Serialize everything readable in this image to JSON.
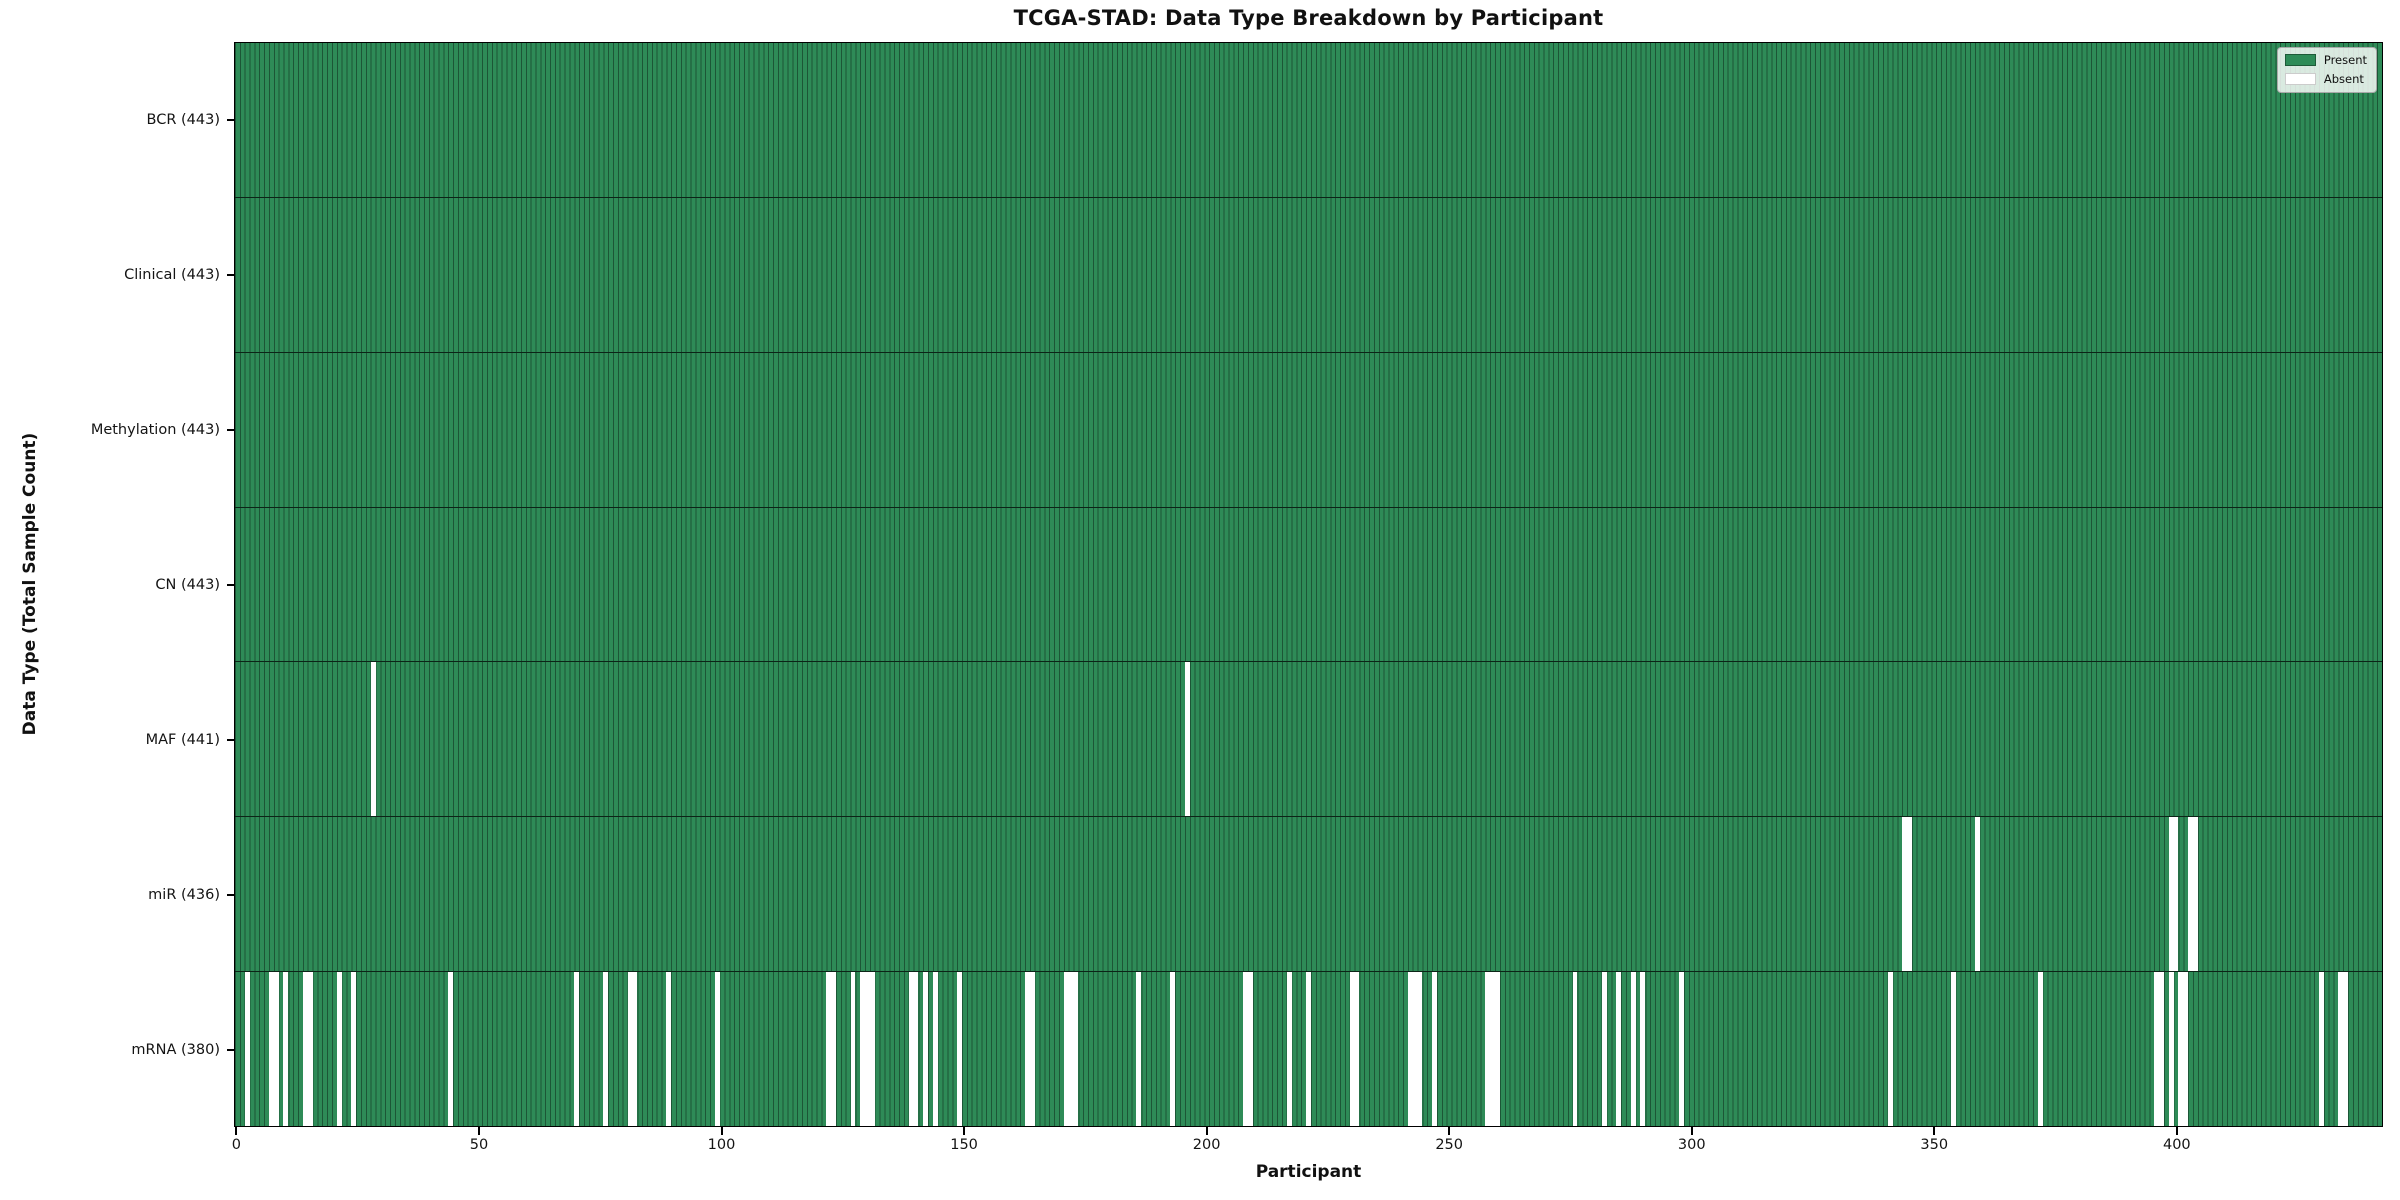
{
  "chart_data": {
    "type": "heatmap",
    "title": "TCGA-STAD: Data Type Breakdown by Participant",
    "xlabel": "Participant",
    "ylabel": "Data Type (Total Sample Count)",
    "n_participants": 443,
    "x_ticks": [
      0,
      50,
      100,
      150,
      200,
      250,
      300,
      350,
      400
    ],
    "xlim": [
      -0.5,
      442.5
    ],
    "grid": false,
    "legend_position": "upper right",
    "legend": {
      "present_label": "Present",
      "absent_label": "Absent"
    },
    "colors": {
      "present": "#2e8b57",
      "absent": "#ffffff"
    },
    "cell_semantics": "green cell = data type present for participant, white cell = absent",
    "rows": [
      {
        "name": "BCR",
        "label": "BCR (443)",
        "present_count": 443,
        "absent_participants": []
      },
      {
        "name": "Clinical",
        "label": "Clinical (443)",
        "present_count": 443,
        "absent_participants": []
      },
      {
        "name": "Methylation",
        "label": "Methylation (443)",
        "present_count": 443,
        "absent_participants": []
      },
      {
        "name": "CN",
        "label": "CN (443)",
        "present_count": 443,
        "absent_participants": []
      },
      {
        "name": "MAF",
        "label": "MAF (441)",
        "present_count": 441,
        "absent_participants": [
          28,
          196
        ]
      },
      {
        "name": "miR",
        "label": "miR (436)",
        "present_count": 436,
        "absent_participants": [
          344,
          345,
          359,
          399,
          400,
          403,
          404
        ]
      },
      {
        "name": "mRNA",
        "label": "mRNA (380)",
        "present_count": 380,
        "absent_participants": [
          2,
          7,
          8,
          10,
          14,
          15,
          21,
          24,
          44,
          70,
          76,
          81,
          82,
          89,
          99,
          122,
          123,
          127,
          129,
          130,
          131,
          139,
          140,
          142,
          144,
          149,
          163,
          164,
          171,
          172,
          173,
          186,
          193,
          208,
          209,
          217,
          221,
          230,
          231,
          242,
          243,
          244,
          247,
          258,
          259,
          260,
          276,
          282,
          285,
          288,
          290,
          298,
          341,
          354,
          372,
          396,
          397,
          399,
          401,
          402,
          430,
          434,
          435
        ]
      }
    ]
  }
}
